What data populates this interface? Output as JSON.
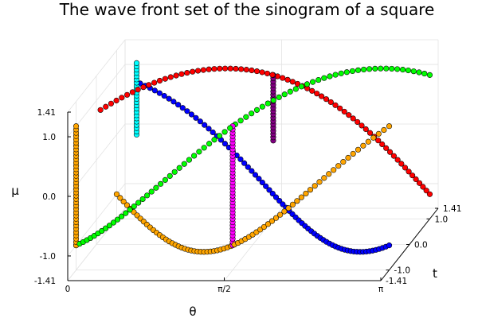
{
  "chart_data": {
    "type": "scatter",
    "projection": "3d",
    "title": "The wave front set of the sinogram of a square",
    "xlabel": "θ",
    "ylabel": "t",
    "zlabel": "μ",
    "xlim": [
      0,
      3.1416
    ],
    "ylim": [
      -1.4142,
      1.4142
    ],
    "zlim": [
      -1.4142,
      1.4142
    ],
    "x_ticks": [
      {
        "value": 0,
        "label": "0"
      },
      {
        "value": 1.5708,
        "label": "π/2"
      },
      {
        "value": 3.1416,
        "label": "π"
      }
    ],
    "y_ticks": [
      {
        "value": -1.4142,
        "label": "-1.41"
      },
      {
        "value": -1.0,
        "label": "-1.0"
      },
      {
        "value": 0.0,
        "label": "0.0"
      },
      {
        "value": 1.0,
        "label": "1.0"
      },
      {
        "value": 1.4142,
        "label": "1.41"
      }
    ],
    "z_ticks": [
      {
        "value": -1.4142,
        "label": "-1.41"
      },
      {
        "value": -1.0,
        "label": "-1.0"
      },
      {
        "value": 0.0,
        "label": "0.0"
      },
      {
        "value": 1.0,
        "label": "1.0"
      },
      {
        "value": 1.4142,
        "label": "1.41"
      }
    ],
    "grid": true,
    "legend": false,
    "series": [
      {
        "color": "#0000ff",
        "shape": "curve",
        "x_range": [
          0.2,
          3.1416
        ],
        "t_formula": "√2·sin(θ + π/4)",
        "mu_formula": "√2·cos(θ + π/4)",
        "points": 70
      },
      {
        "color": "#ff0000",
        "shape": "curve",
        "x_range": [
          0.2,
          3.1416
        ],
        "t_formula": "√2·sin(θ − π/4)",
        "mu_formula": "√2·cos(θ − π/4)",
        "points": 70
      },
      {
        "color": "#00ff00",
        "shape": "curve",
        "x_range": [
          0,
          3.1416
        ],
        "t_formula": "−√2·sin(θ + π/4)",
        "mu_formula": "−√2·cos(θ + π/4)",
        "points": 72
      },
      {
        "color": "#ffa500",
        "shape": "curve",
        "x_range": [
          0,
          3.1416
        ],
        "t_formula": "−√2·sin(θ − π/4)",
        "mu_formula": "−√2·cos(θ − π/4)",
        "points": 72
      },
      {
        "color": "#00ffff",
        "shape": "vertical",
        "x": 0.2,
        "t": 1.0,
        "mu_range": [
          0.0,
          1.2
        ]
      },
      {
        "color": "#ffa500",
        "shape": "vertical",
        "x": 0.0,
        "t": -1.0,
        "mu_range": [
          -1.0,
          1.0
        ]
      },
      {
        "color": "#ff00ff",
        "shape": "vertical",
        "x": 1.5708,
        "t": -1.0,
        "mu_range": [
          -1.0,
          1.0
        ]
      },
      {
        "color": "#800080",
        "shape": "vertical",
        "x": 1.5708,
        "t": 1.0,
        "mu_range": [
          -0.1,
          1.0
        ]
      }
    ]
  }
}
